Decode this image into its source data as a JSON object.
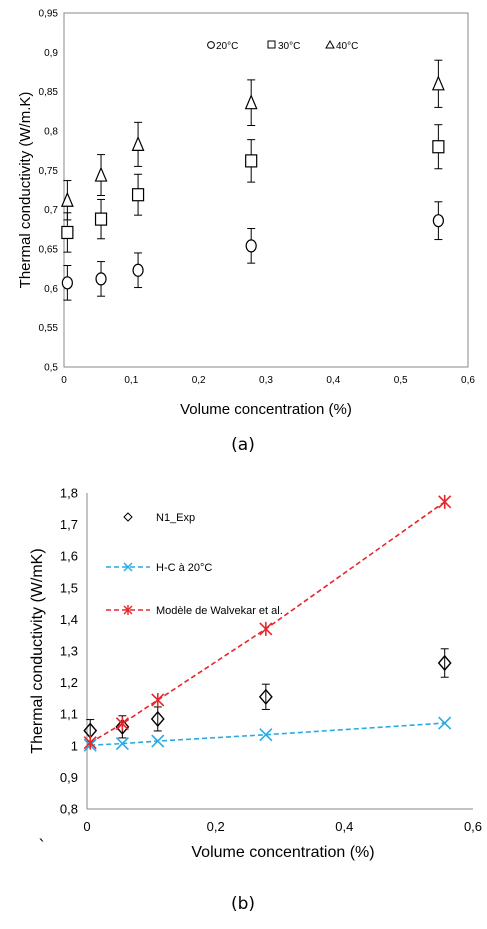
{
  "chart_data": [
    {
      "type": "scatter",
      "caption": "(a)",
      "xlabel": "Volume concentration (%)",
      "ylabel": "Thermal conductivity (W/m.K)",
      "xlim": [
        0,
        0.6
      ],
      "ylim": [
        0.5,
        0.95
      ],
      "xticks": [
        "0",
        "0,1",
        "0,2",
        "0,3",
        "0,4",
        "0,5",
        "0,6"
      ],
      "yticks": [
        "0,5",
        "0,55",
        "0,6",
        "0,65",
        "0,7",
        "0,75",
        "0,8",
        "0,85",
        "0,9",
        "0,95"
      ],
      "grid": false,
      "legend_position": "top-center",
      "series": [
        {
          "name": "20°C",
          "marker": "circle",
          "x": [
            0.005,
            0.055,
            0.11,
            0.278,
            0.556
          ],
          "y": [
            0.607,
            0.612,
            0.623,
            0.654,
            0.686
          ],
          "err": [
            0.022,
            0.022,
            0.022,
            0.022,
            0.024
          ]
        },
        {
          "name": "30°C",
          "marker": "square",
          "x": [
            0.005,
            0.055,
            0.11,
            0.278,
            0.556
          ],
          "y": [
            0.671,
            0.688,
            0.719,
            0.762,
            0.78
          ],
          "err": [
            0.025,
            0.025,
            0.026,
            0.027,
            0.028
          ]
        },
        {
          "name": "40°C",
          "marker": "triangle",
          "x": [
            0.005,
            0.055,
            0.11,
            0.278,
            0.556
          ],
          "y": [
            0.712,
            0.744,
            0.783,
            0.836,
            0.86
          ],
          "err": [
            0.025,
            0.026,
            0.028,
            0.029,
            0.03
          ]
        }
      ]
    },
    {
      "type": "line",
      "caption": "(b)",
      "xlabel": "Volume concentration (%)",
      "ylabel": "Thermal conductivity (W/mK)",
      "xlim": [
        0,
        0.6
      ],
      "ylim": [
        0.8,
        1.8
      ],
      "xticks": [
        "0",
        "0,2",
        "0,4",
        "0,6"
      ],
      "yticks": [
        "0,8",
        "0,9",
        "1",
        "1,1",
        "1,2",
        "1,3",
        "1,4",
        "1,5",
        "1,6",
        "1,7",
        "1,8"
      ],
      "grid": false,
      "legend_position": "top-left",
      "series": [
        {
          "name": "N1_Exp",
          "marker": "diamond",
          "color": "#000000",
          "line": "none",
          "x": [
            0.005,
            0.055,
            0.11,
            0.278,
            0.556
          ],
          "y": [
            1.048,
            1.06,
            1.085,
            1.155,
            1.262
          ],
          "err": [
            0.035,
            0.035,
            0.038,
            0.04,
            0.045
          ]
        },
        {
          "name": "H-C à 20°C",
          "marker": "x",
          "color": "#29abe2",
          "line": "dashed",
          "x": [
            0.005,
            0.055,
            0.11,
            0.278,
            0.556
          ],
          "y": [
            1.002,
            1.007,
            1.015,
            1.035,
            1.072
          ]
        },
        {
          "name": "Modèle de Walvekar et al.",
          "marker": "asterisk",
          "color": "#e8262a",
          "line": "dashed",
          "x": [
            0.005,
            0.055,
            0.11,
            0.278,
            0.556
          ],
          "y": [
            1.01,
            1.07,
            1.145,
            1.37,
            1.772
          ]
        }
      ]
    }
  ],
  "stray_mark": "`"
}
